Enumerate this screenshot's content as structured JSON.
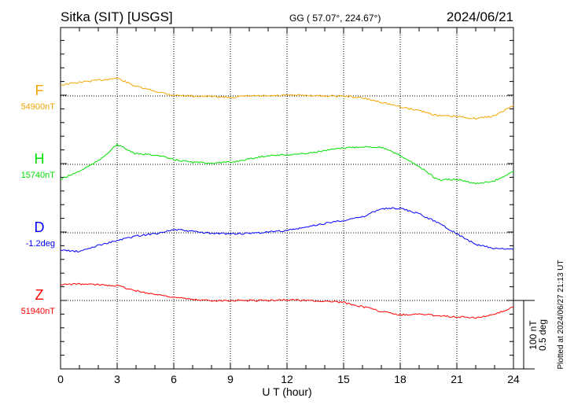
{
  "header": {
    "station": "Sitka (SIT)  [USGS]",
    "coords": "GG ( 57.07°, 224.67°)",
    "date": "2024/06/21"
  },
  "footer": {
    "plotted": "Plotted at 2024/06/27 21:13 UT",
    "scale_nt": "100 nT",
    "scale_deg": "0.5 deg"
  },
  "chart_data": {
    "type": "line",
    "title": "Sitka (SIT)  [USGS]",
    "xlabel": "U T (hour)",
    "xlim": [
      0,
      24
    ],
    "xticks": [
      "0",
      "3",
      "6",
      "9",
      "12",
      "15",
      "18",
      "21",
      "24"
    ],
    "grid": true,
    "scale": {
      "nT_per_bar": 100,
      "deg_per_bar": 0.5
    },
    "x": [
      0,
      1,
      2,
      3,
      4,
      5,
      6,
      7,
      8,
      9,
      10,
      11,
      12,
      13,
      14,
      15,
      16,
      17,
      18,
      19,
      20,
      21,
      22,
      23,
      24
    ],
    "series": [
      {
        "name": "F",
        "baseline_label": "54900nT",
        "unit": "nT",
        "color": "#f5a500",
        "values": [
          16,
          20,
          23,
          26,
          14,
          7,
          1,
          0,
          -1,
          -2,
          0,
          0,
          1,
          1,
          0,
          0,
          -3,
          -9,
          -16,
          -21,
          -29,
          -30,
          -33,
          -29,
          -14
        ]
      },
      {
        "name": "H",
        "baseline_label": "15740nT",
        "unit": "nT",
        "color": "#00e000",
        "values": [
          -22,
          -10,
          5,
          29,
          15,
          14,
          7,
          3,
          2,
          3,
          8,
          13,
          14,
          16,
          20,
          24,
          26,
          25,
          13,
          -3,
          -23,
          -22,
          -28,
          -24,
          -11
        ]
      },
      {
        "name": "D",
        "baseline_label": "-1.2deg",
        "unit": "deg",
        "color": "#0000ff",
        "values": [
          -0.126,
          -0.138,
          -0.092,
          -0.057,
          -0.023,
          -0.006,
          0.023,
          0.011,
          -0.006,
          -0.006,
          -0.006,
          0.006,
          0.017,
          0.04,
          0.069,
          0.092,
          0.115,
          0.178,
          0.178,
          0.138,
          0.075,
          -0.006,
          -0.086,
          -0.115,
          -0.121
        ]
      },
      {
        "name": "Z",
        "baseline_label": "51940nT",
        "unit": "nT",
        "color": "#ff0000",
        "values": [
          23,
          24,
          23,
          22,
          14,
          9,
          5,
          1,
          0,
          0,
          0,
          0,
          1,
          0,
          -1,
          -3,
          -9,
          -16,
          -21,
          -20,
          -22,
          -24,
          -25,
          -21,
          -9
        ]
      }
    ]
  }
}
